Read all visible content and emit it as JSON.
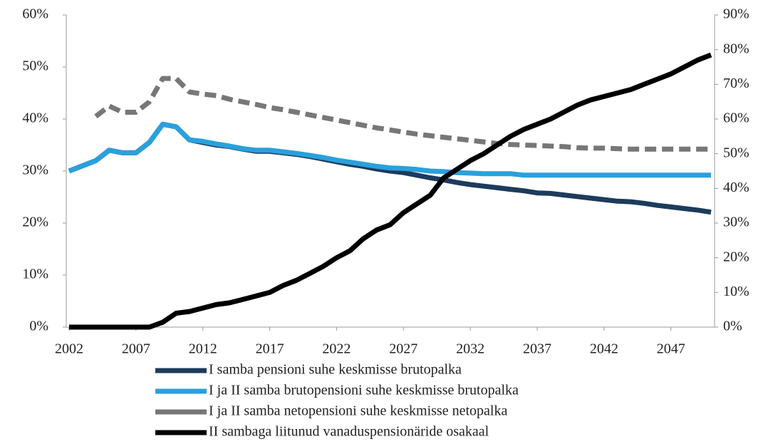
{
  "chart_data": {
    "type": "line",
    "x": [
      2002,
      2003,
      2004,
      2005,
      2006,
      2007,
      2008,
      2009,
      2010,
      2011,
      2012,
      2013,
      2014,
      2015,
      2016,
      2017,
      2018,
      2019,
      2020,
      2021,
      2022,
      2023,
      2024,
      2025,
      2026,
      2027,
      2028,
      2029,
      2030,
      2031,
      2032,
      2033,
      2034,
      2035,
      2036,
      2037,
      2038,
      2039,
      2040,
      2041,
      2042,
      2043,
      2044,
      2045,
      2046,
      2047,
      2048,
      2049,
      2050
    ],
    "xlim": [
      2002,
      2050
    ],
    "xticks": [
      2002,
      2007,
      2012,
      2017,
      2022,
      2027,
      2032,
      2037,
      2042,
      2047
    ],
    "ylim": [
      0,
      60
    ],
    "yticks": [
      {
        "value": 0,
        "label": "0%"
      },
      {
        "value": 10,
        "label": "10%"
      },
      {
        "value": 20,
        "label": "20%"
      },
      {
        "value": 30,
        "label": "30%"
      },
      {
        "value": 40,
        "label": "40%"
      },
      {
        "value": 50,
        "label": "50%"
      },
      {
        "value": 60,
        "label": "60%"
      }
    ],
    "y2lim": [
      0,
      90
    ],
    "y2ticks": [
      {
        "value": 0,
        "label": "0%"
      },
      {
        "value": 10,
        "label": "10%"
      },
      {
        "value": 20,
        "label": "20%"
      },
      {
        "value": 30,
        "label": "30%"
      },
      {
        "value": 40,
        "label": "40%"
      },
      {
        "value": 50,
        "label": "50%"
      },
      {
        "value": 60,
        "label": "60%"
      },
      {
        "value": 70,
        "label": "70%"
      },
      {
        "value": 80,
        "label": "80%"
      },
      {
        "value": 90,
        "label": "90%"
      }
    ],
    "legend": "bottom",
    "series": [
      {
        "name": "I samba pensioni suhe keskmisse brutopalka",
        "color": "#1d3b5c",
        "dashed": false,
        "values": [
          30,
          31,
          32,
          34,
          33.5,
          33.5,
          35.5,
          39,
          38.5,
          36,
          35.5,
          35,
          34.7,
          34.2,
          33.8,
          33.8,
          33.5,
          33.2,
          32.8,
          32.3,
          31.8,
          31.3,
          30.9,
          30.4,
          30,
          29.7,
          29.2,
          28.7,
          28.3,
          27.8,
          27.4,
          27.1,
          26.8,
          26.5,
          26.2,
          25.8,
          25.7,
          25.4,
          25.1,
          24.8,
          24.5,
          24.2,
          24.1,
          23.8,
          23.4,
          23.1,
          22.8,
          22.5,
          22.1
        ]
      },
      {
        "name": "I ja II samba brutopensioni suhe keskmisse brutopalka",
        "color": "#2aa0dc",
        "dashed": false,
        "values": [
          30,
          31,
          32,
          34,
          33.5,
          33.5,
          35.5,
          39,
          38.5,
          36,
          35.7,
          35.2,
          34.8,
          34.3,
          34,
          34,
          33.7,
          33.4,
          33,
          32.6,
          32.1,
          31.7,
          31.3,
          30.9,
          30.6,
          30.5,
          30.3,
          30,
          29.9,
          29.7,
          29.6,
          29.5,
          29.5,
          29.5,
          29.2,
          29.2,
          29.2,
          29.2,
          29.2,
          29.2,
          29.2,
          29.2,
          29.2,
          29.2,
          29.2,
          29.2,
          29.2,
          29.2,
          29.2
        ]
      },
      {
        "name": "I ja II samba netopensioni suhe keskmisse netopalka",
        "color": "#777777",
        "dashed": true,
        "values": [
          null,
          null,
          40.5,
          42.5,
          41.3,
          41.3,
          43.3,
          47.8,
          47.8,
          45.2,
          44.8,
          44.5,
          43.8,
          43.3,
          42.8,
          42.2,
          41.8,
          41.3,
          40.8,
          40.3,
          39.8,
          39.3,
          38.8,
          38.3,
          37.9,
          37.5,
          37.1,
          36.8,
          36.5,
          36.2,
          35.9,
          35.6,
          35.3,
          35.1,
          35,
          34.9,
          34.8,
          34.7,
          34.5,
          34.4,
          34.4,
          34.3,
          34.2,
          34.2,
          34.2,
          34.2,
          34.2,
          34.2,
          34.2
        ]
      },
      {
        "name": "II sambaga liitunud vanaduspensionäride osakaal",
        "color": "#000000",
        "dashed": false,
        "axis": "y2",
        "values": [
          0,
          0,
          0,
          0,
          0,
          0,
          0,
          1.4,
          4,
          4.5,
          5.5,
          6.5,
          7,
          8,
          9,
          10,
          12,
          13.5,
          15.5,
          17.5,
          20,
          22,
          25.5,
          28,
          29.5,
          33,
          35.5,
          38,
          43,
          45.5,
          48,
          50,
          52.5,
          55,
          57,
          58.5,
          60,
          62,
          64,
          65.5,
          66.5,
          67.5,
          68.5,
          70,
          71.5,
          73,
          75,
          77,
          78.5
        ]
      }
    ]
  }
}
